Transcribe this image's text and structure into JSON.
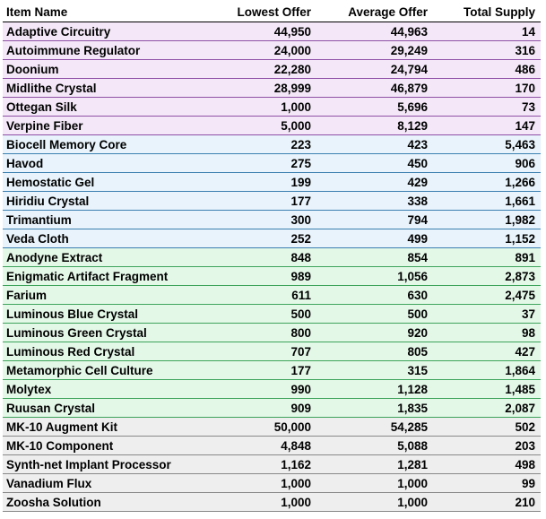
{
  "table": {
    "header": [
      "Item Name",
      "Lowest Offer",
      "Average Offer",
      "Total Supply"
    ],
    "groups": [
      {
        "rows": [
          [
            "Adaptive Circuitry",
            "44,950",
            "44,963",
            "14"
          ],
          [
            "Autoimmune Regulator",
            "24,000",
            "29,249",
            "316"
          ],
          [
            "Doonium",
            "22,280",
            "24,794",
            "486"
          ],
          [
            "Midlithe Crystal",
            "28,999",
            "46,879",
            "170"
          ],
          [
            "Ottegan Silk",
            "1,000",
            "5,696",
            "73"
          ],
          [
            "Verpine Fiber",
            "5,000",
            "8,129",
            "147"
          ]
        ]
      },
      {
        "rows": [
          [
            "Biocell Memory Core",
            "223",
            "423",
            "5,463"
          ],
          [
            "Havod",
            "275",
            "450",
            "906"
          ],
          [
            "Hemostatic Gel",
            "199",
            "429",
            "1,266"
          ],
          [
            "Hiridiu Crystal",
            "177",
            "338",
            "1,661"
          ],
          [
            "Trimantium",
            "300",
            "794",
            "1,982"
          ],
          [
            "Veda Cloth",
            "252",
            "499",
            "1,152"
          ]
        ]
      },
      {
        "rows": [
          [
            "Anodyne Extract",
            "848",
            "854",
            "891"
          ],
          [
            "Enigmatic Artifact Fragment",
            "989",
            "1,056",
            "2,873"
          ],
          [
            "Farium",
            "611",
            "630",
            "2,475"
          ],
          [
            "Luminous Blue Crystal",
            "500",
            "500",
            "37"
          ],
          [
            "Luminous Green Crystal",
            "800",
            "920",
            "98"
          ],
          [
            "Luminous Red Crystal",
            "707",
            "805",
            "427"
          ],
          [
            "Metamorphic Cell Culture",
            "177",
            "315",
            "1,864"
          ],
          [
            "Molytex",
            "990",
            "1,128",
            "1,485"
          ],
          [
            "Ruusan Crystal",
            "909",
            "1,835",
            "2,087"
          ]
        ]
      },
      {
        "rows": [
          [
            "MK-10 Augment Kit",
            "50,000",
            "54,285",
            "502"
          ],
          [
            "MK-10 Component",
            "4,848",
            "5,088",
            "203"
          ],
          [
            "Synth-net Implant Processor",
            "1,162",
            "1,281",
            "498"
          ],
          [
            "Vanadium Flux",
            "1,000",
            "1,000",
            "99"
          ],
          [
            "Zoosha Solution",
            "1,000",
            "1,000",
            "210"
          ]
        ]
      }
    ]
  }
}
